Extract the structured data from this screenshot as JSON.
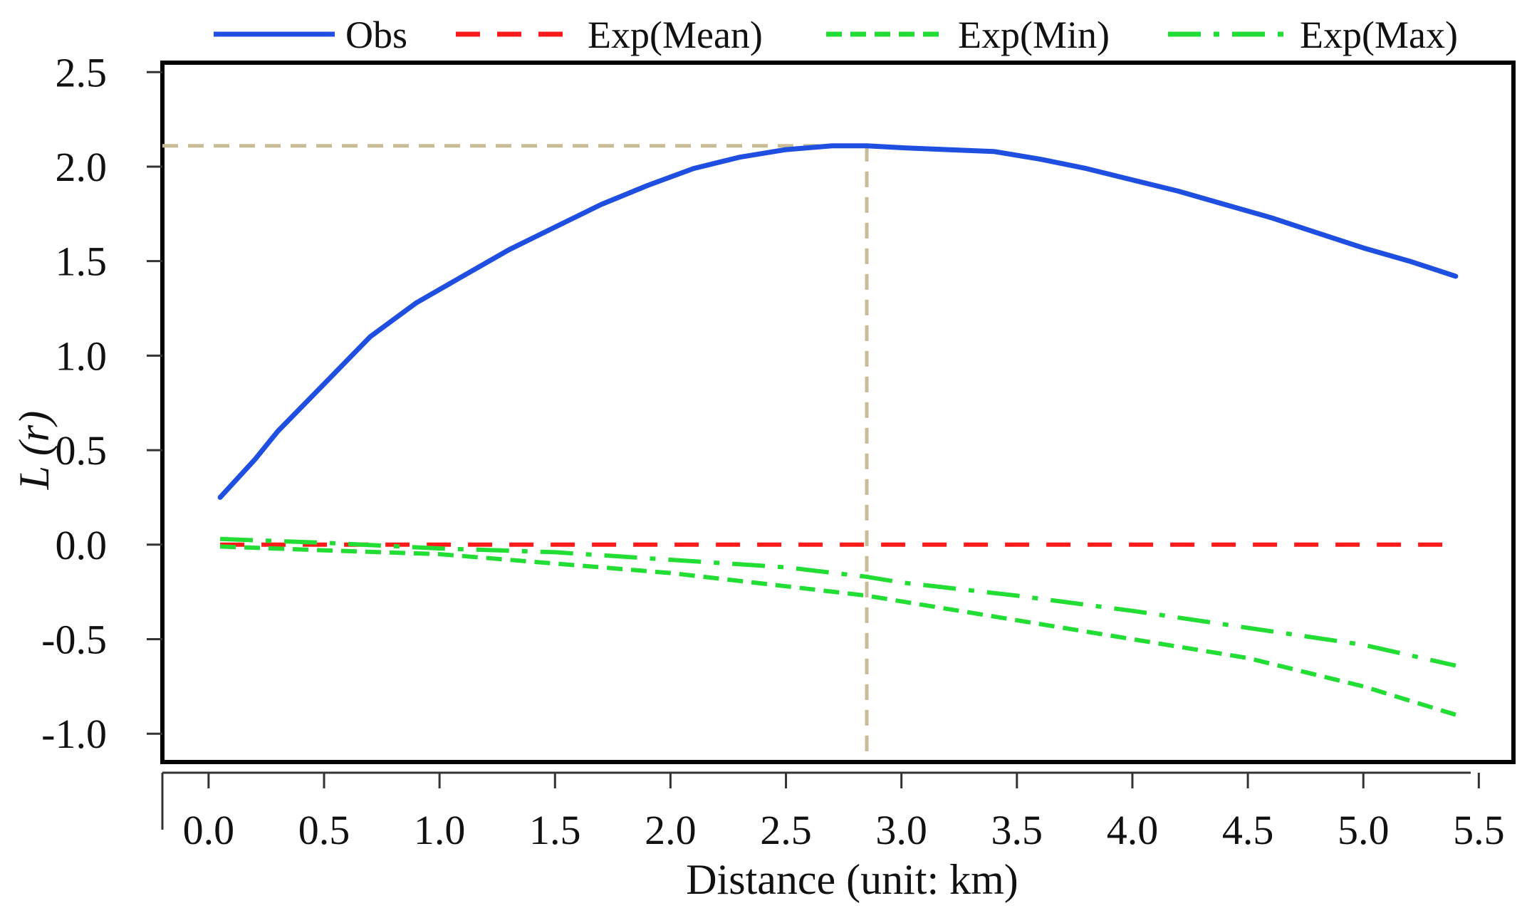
{
  "chart_data": {
    "type": "line",
    "xlabel": "Distance (unit: km)",
    "ylabel": "L (r)",
    "xlim": [
      -0.2,
      5.65
    ],
    "ylim": [
      -1.15,
      2.55
    ],
    "x_ticks": [
      "0.0",
      "0.5",
      "1.0",
      "1.5",
      "2.0",
      "2.5",
      "3.0",
      "3.5",
      "4.0",
      "4.5",
      "5.0",
      "5.5"
    ],
    "y_ticks": [
      "2.5",
      "2.0",
      "1.5",
      "1.0",
      "0.5",
      "0.0",
      "-0.5",
      "-1.0"
    ],
    "legend": {
      "placement": "top",
      "entries": [
        "Obs",
        "Exp(Mean)",
        "Exp(Min)",
        "Exp(Max)"
      ]
    },
    "grid": false,
    "reference_lines": {
      "x": 2.85,
      "y": 2.11,
      "color": "#c8bc96"
    },
    "series": [
      {
        "name": "Obs",
        "color": "#1f4fe0",
        "dash": "solid",
        "x": [
          0.05,
          0.2,
          0.3,
          0.5,
          0.7,
          0.9,
          1.1,
          1.3,
          1.5,
          1.7,
          1.9,
          2.1,
          2.3,
          2.5,
          2.7,
          2.85,
          3.0,
          3.2,
          3.4,
          3.6,
          3.8,
          4.0,
          4.2,
          4.4,
          4.6,
          4.8,
          5.0,
          5.2,
          5.4
        ],
        "y": [
          0.25,
          0.45,
          0.6,
          0.85,
          1.1,
          1.28,
          1.42,
          1.56,
          1.68,
          1.8,
          1.9,
          1.99,
          2.05,
          2.09,
          2.11,
          2.11,
          2.1,
          2.09,
          2.08,
          2.04,
          1.99,
          1.93,
          1.87,
          1.8,
          1.73,
          1.65,
          1.57,
          1.5,
          1.42
        ]
      },
      {
        "name": "Exp(Mean)",
        "color": "#ff1a1a",
        "dash": "dash",
        "x": [
          0.05,
          5.4
        ],
        "y": [
          0.0,
          0.0
        ]
      },
      {
        "name": "Exp(Min)",
        "color": "#22dd33",
        "dash": "shortdash",
        "x": [
          0.05,
          0.5,
          1.0,
          1.5,
          2.0,
          2.5,
          2.85,
          3.0,
          3.5,
          4.0,
          4.5,
          5.0,
          5.4
        ],
        "y": [
          -0.01,
          -0.03,
          -0.05,
          -0.1,
          -0.15,
          -0.22,
          -0.27,
          -0.3,
          -0.4,
          -0.5,
          -0.6,
          -0.75,
          -0.9
        ]
      },
      {
        "name": "Exp(Max)",
        "color": "#22dd33",
        "dash": "dashdot",
        "x": [
          0.05,
          0.5,
          1.0,
          1.5,
          2.0,
          2.5,
          2.85,
          3.0,
          3.5,
          4.0,
          4.5,
          5.0,
          5.4
        ],
        "y": [
          0.03,
          0.01,
          -0.02,
          -0.04,
          -0.08,
          -0.12,
          -0.17,
          -0.2,
          -0.27,
          -0.35,
          -0.44,
          -0.53,
          -0.64
        ]
      }
    ]
  }
}
